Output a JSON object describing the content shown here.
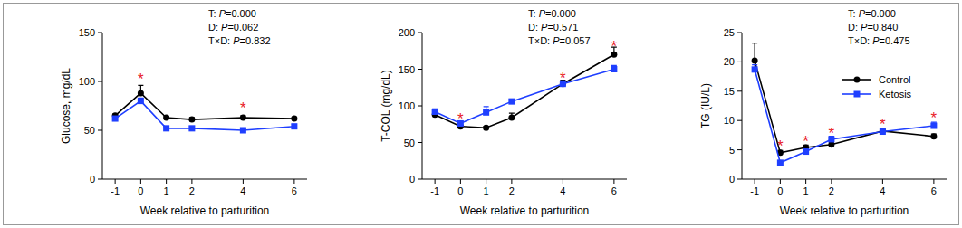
{
  "chart_data": [
    {
      "type": "line",
      "ylabel": "Glucose, mg/dL",
      "xlabel": "Week relative to parturition",
      "x": [
        -1,
        0,
        1,
        2,
        4,
        6
      ],
      "xlim": [
        -1.5,
        6.5
      ],
      "xticks": [
        -1,
        0,
        1,
        2,
        4,
        6
      ],
      "ylim": [
        0,
        150
      ],
      "yticks": [
        0,
        50,
        100,
        150
      ],
      "annotations": [
        "T: P=0.000",
        "D: P=0.062",
        "T×D: P=0.832"
      ],
      "series": [
        {
          "name": "Control",
          "color": "#000000",
          "marker": "circle",
          "line_style": "solid",
          "values": [
            65,
            88,
            63,
            61,
            63,
            62
          ],
          "errors": [
            1.5,
            8,
            1.5,
            2,
            2,
            1.5
          ]
        },
        {
          "name": "Ketosis",
          "color": "#1f3fff",
          "marker": "square",
          "line_style": "solid",
          "values": [
            62,
            80,
            52,
            52,
            50,
            54
          ],
          "errors": [
            2,
            3,
            1.5,
            2,
            1.5,
            2
          ]
        }
      ],
      "significance": {
        "label": "*",
        "x": [
          0,
          4
        ],
        "y": [
          104,
          74
        ]
      }
    },
    {
      "type": "line",
      "ylabel": "T-COL (mg/dL)",
      "xlabel": "Week relative to parturition",
      "x": [
        -1,
        0,
        1,
        2,
        4,
        6
      ],
      "xlim": [
        -1.5,
        6.5
      ],
      "xticks": [
        -1,
        0,
        1,
        2,
        4,
        6
      ],
      "ylim": [
        0,
        200
      ],
      "yticks": [
        0,
        50,
        100,
        150,
        200
      ],
      "annotations": [
        "T: P=0.000",
        "D: P=0.571",
        "T×D: P=0.057"
      ],
      "series": [
        {
          "name": "Control",
          "color": "#000000",
          "marker": "circle",
          "line_style": "solid",
          "values": [
            88,
            72,
            70,
            84,
            130,
            170
          ],
          "errors": [
            3,
            2,
            2,
            6,
            5,
            10
          ]
        },
        {
          "name": "Ketosis",
          "color": "#1f3fff",
          "marker": "square",
          "line_style": "solid",
          "values": [
            92,
            76,
            91,
            106,
            130,
            150
          ],
          "errors": [
            4,
            3,
            8,
            3,
            4,
            5
          ]
        }
      ],
      "significance": {
        "label": "*",
        "x": [
          0,
          4,
          6
        ],
        "y": [
          84,
          140,
          183
        ]
      }
    },
    {
      "type": "line",
      "ylabel": "TG (IU/L)",
      "xlabel": "Week relative to parturition",
      "x": [
        -1,
        0,
        1,
        2,
        4,
        6
      ],
      "xlim": [
        -1.5,
        6.5
      ],
      "xticks": [
        -1,
        0,
        1,
        2,
        4,
        6
      ],
      "ylim": [
        0,
        25
      ],
      "yticks": [
        0,
        5,
        10,
        15,
        20,
        25
      ],
      "annotations": [
        "T: P=0.000",
        "D: P=0.840",
        "T×D: P=0.475"
      ],
      "legend": "upper right",
      "series": [
        {
          "name": "Control",
          "color": "#000000",
          "marker": "circle",
          "line_style": "solid",
          "values": [
            20.2,
            4.5,
            5.4,
            5.9,
            8.2,
            7.3
          ],
          "errors": [
            3,
            0.4,
            0.4,
            0.4,
            0.3,
            0.4
          ]
        },
        {
          "name": "Ketosis",
          "color": "#1f3fff",
          "marker": "square",
          "line_style": "solid",
          "values": [
            18.7,
            2.8,
            4.7,
            6.8,
            8.1,
            9.1
          ],
          "errors": [
            0.8,
            0.3,
            0.3,
            0.5,
            0.3,
            0.6
          ]
        }
      ],
      "significance": {
        "label": "*",
        "x": [
          0,
          1,
          2,
          4,
          6
        ],
        "y": [
          5.8,
          6.6,
          8.0,
          9.6,
          10.6
        ]
      }
    }
  ]
}
